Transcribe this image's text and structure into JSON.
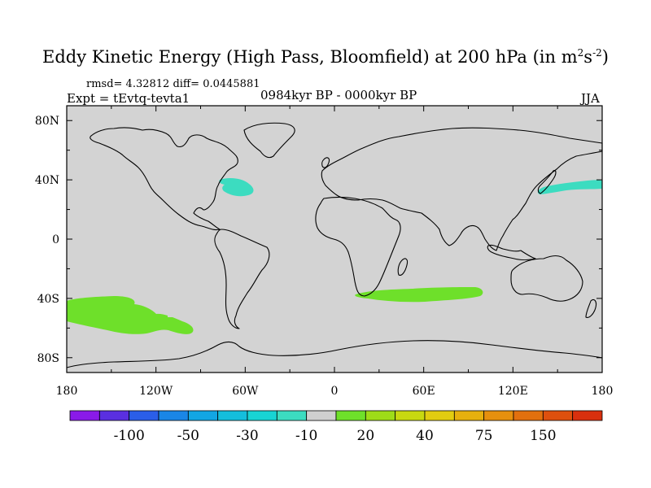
{
  "title": {
    "main": "Eddy Kinetic Energy (High Pass, Bloomfield) at 200 hPa (in m",
    "sup1": "2",
    "mid": "s",
    "sup2": "-2",
    "end": ")"
  },
  "stats": "rmsd= 4.32812 diff= 0.0445881",
  "expt": "Expt = tEvtq-tevta1",
  "period": "0984kyr BP - 0000kyr BP",
  "season": "JJA",
  "colors": {
    "ocean": "#d3d3d3",
    "coast": "#000000",
    "negative_fill": "#3cdcc0",
    "positive_fill": "#6ee02a"
  },
  "chart_data": {
    "type": "map",
    "projection": "cylindrical-equidistant",
    "lon_range": [
      -180,
      180
    ],
    "lat_range": [
      -90,
      90
    ],
    "x_ticks": [
      {
        "value": -180,
        "label": "180"
      },
      {
        "value": -120,
        "label": "120W"
      },
      {
        "value": -60,
        "label": "60W"
      },
      {
        "value": 0,
        "label": "0"
      },
      {
        "value": 60,
        "label": "60E"
      },
      {
        "value": 120,
        "label": "120E"
      },
      {
        "value": 180,
        "label": "180"
      }
    ],
    "y_ticks": [
      {
        "value": 80,
        "label": "80N"
      },
      {
        "value": 40,
        "label": "40N"
      },
      {
        "value": 0,
        "label": "0"
      },
      {
        "value": -40,
        "label": "40S"
      },
      {
        "value": -80,
        "label": "80S"
      }
    ],
    "anomaly_regions": [
      {
        "name": "north-atlantic",
        "sign": "negative",
        "lon": [
          -73,
          -55
        ],
        "lat": [
          35,
          44
        ]
      },
      {
        "name": "north-pacific",
        "sign": "negative",
        "lon": [
          138,
          180
        ],
        "lat": [
          35,
          42
        ]
      },
      {
        "name": "south-atlantic-indian",
        "sign": "positive",
        "lon": [
          15,
          100
        ],
        "lat": [
          -42,
          -32
        ]
      },
      {
        "name": "south-pacific",
        "sign": "positive",
        "lon": [
          -180,
          -95
        ],
        "lat": [
          -64,
          -37
        ]
      }
    ],
    "colorbar": {
      "colors": [
        "#8a1ae8",
        "#5a2fe0",
        "#2a5ee8",
        "#1a86e6",
        "#12a6e4",
        "#14bedc",
        "#18d4d4",
        "#3cdcc0",
        "#cfcfcf",
        "#6ee02a",
        "#9edc18",
        "#c8d810",
        "#e2cc10",
        "#e6b00e",
        "#e6900e",
        "#e2700e",
        "#de500e",
        "#d8300e"
      ],
      "labels": [
        {
          "boundary": 2,
          "text": "-100"
        },
        {
          "boundary": 4,
          "text": "-50"
        },
        {
          "boundary": 6,
          "text": "-30"
        },
        {
          "boundary": 8,
          "text": "-10"
        },
        {
          "boundary": 10,
          "text": "20"
        },
        {
          "boundary": 12,
          "text": "40"
        },
        {
          "boundary": 14,
          "text": "75"
        },
        {
          "boundary": 16,
          "text": "150"
        }
      ]
    }
  }
}
